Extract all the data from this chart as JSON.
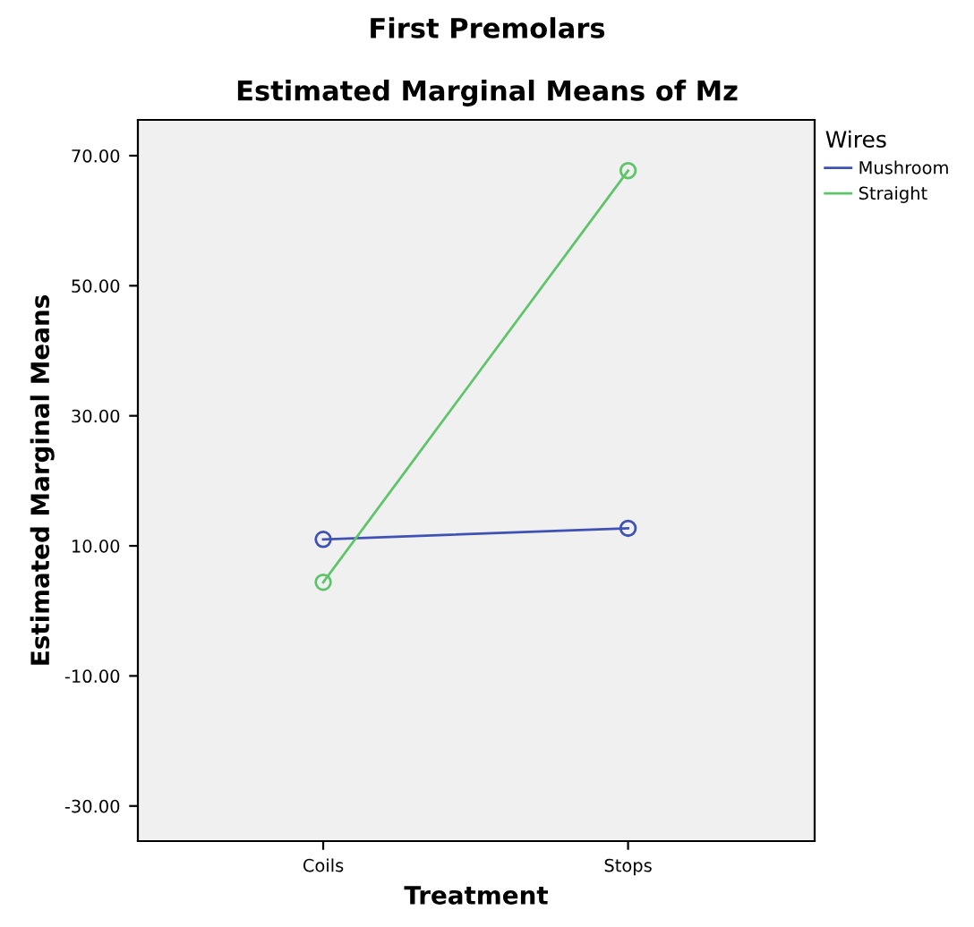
{
  "chart_data": {
    "type": "line",
    "title": "First Premolars",
    "subtitle": "Estimated Marginal Means of Mz",
    "xlabel": "Treatment",
    "ylabel": "Estimated Marginal Means",
    "legend_title": "Wires",
    "categories": [
      "Coils",
      "Stops"
    ],
    "series": [
      {
        "name": "Mushroom",
        "color": "#3f51b5",
        "values": [
          11.0,
          12.7
        ]
      },
      {
        "name": "Straight",
        "color": "#5ec46a",
        "values": [
          4.4,
          67.7
        ]
      }
    ],
    "ylim": [
      -35.4,
      75.5
    ],
    "yticks": [
      {
        "value": -30,
        "label": "-30.00"
      },
      {
        "value": -10,
        "label": "-10.00"
      },
      {
        "value": 10,
        "label": "10.00"
      },
      {
        "value": 30,
        "label": "30.00"
      },
      {
        "value": 50,
        "label": "50.00"
      },
      {
        "value": 70,
        "label": "70.00"
      }
    ],
    "grid": false,
    "legend": "top right",
    "marker": "circle",
    "line_style": "solid"
  }
}
